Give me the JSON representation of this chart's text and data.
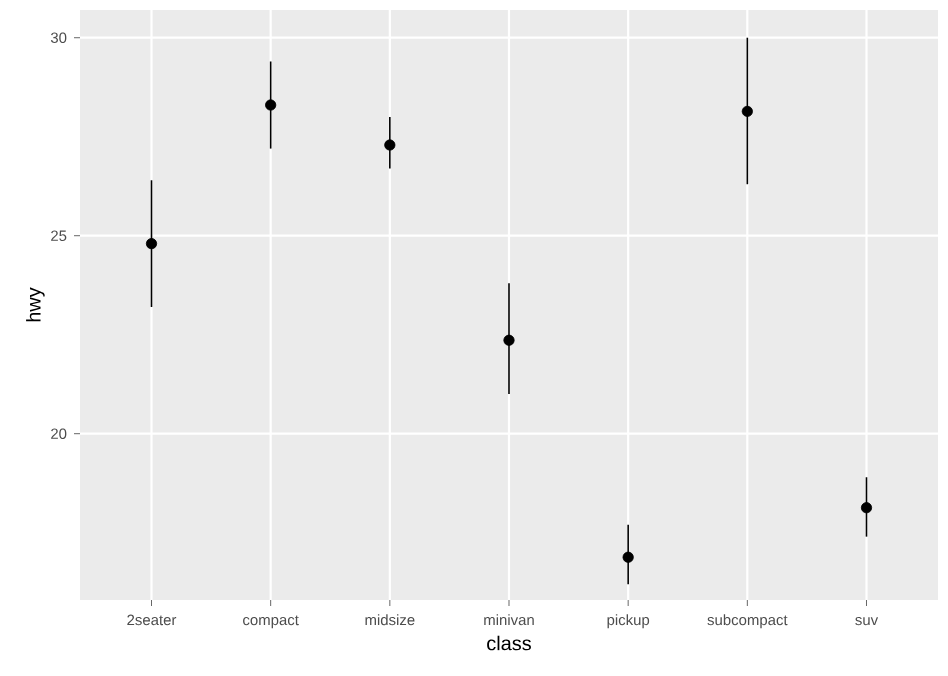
{
  "chart_data": {
    "type": "scatter",
    "xlabel": "class",
    "ylabel": "hwy",
    "categories": [
      "2seater",
      "compact",
      "midsize",
      "minivan",
      "pickup",
      "subcompact",
      "suv"
    ],
    "values": [
      24.8,
      28.3,
      27.29,
      22.36,
      16.88,
      28.14,
      18.13
    ],
    "errors": [
      [
        23.2,
        26.4
      ],
      [
        27.2,
        29.4
      ],
      [
        26.7,
        28.0
      ],
      [
        21.0,
        23.8
      ],
      [
        16.2,
        17.7
      ],
      [
        26.3,
        30.0
      ],
      [
        17.4,
        18.9
      ]
    ],
    "color": "#000000",
    "marker": "circle",
    "grid": true,
    "ylim": [
      15.8,
      30.7
    ],
    "yticks": [
      20,
      25,
      30
    ]
  }
}
